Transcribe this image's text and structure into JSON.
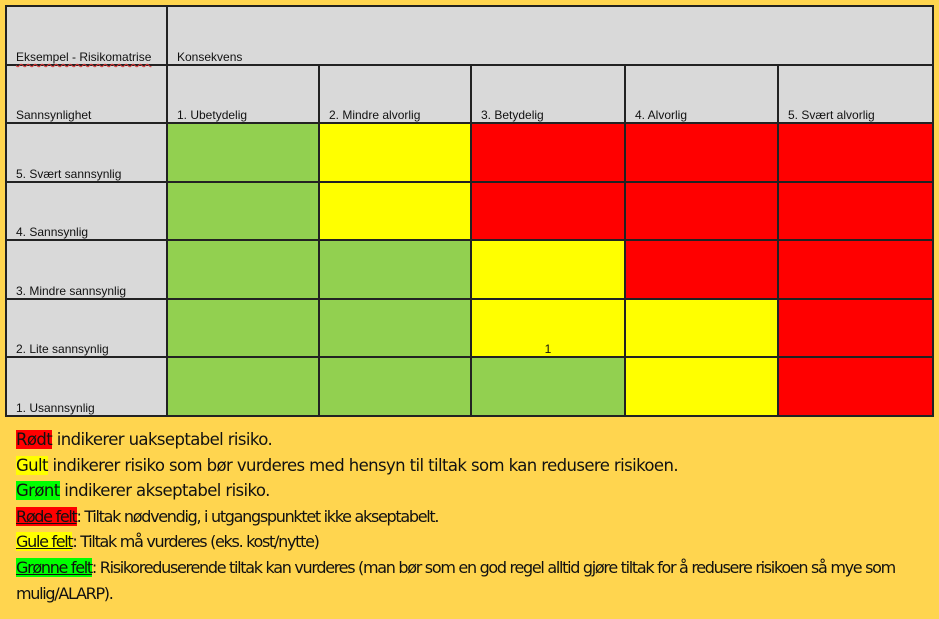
{
  "matrix": {
    "title": "Eksempel - Risikomatrise",
    "consequence_header": "Konsekvens",
    "probability_header": "Sannsynlighet",
    "consequence_columns": [
      "1. Ubetydelig",
      "2. Mindre alvorlig",
      "3. Betydelig",
      "4. Alvorlig",
      "5. Svært alvorlig"
    ],
    "rows": [
      {
        "label": "5. Svært sannsynlig",
        "cells": [
          {
            "color": "green",
            "value": ""
          },
          {
            "color": "yellow",
            "value": ""
          },
          {
            "color": "red",
            "value": ""
          },
          {
            "color": "red",
            "value": ""
          },
          {
            "color": "red",
            "value": ""
          }
        ]
      },
      {
        "label": "4. Sannsynlig",
        "cells": [
          {
            "color": "green",
            "value": ""
          },
          {
            "color": "yellow",
            "value": ""
          },
          {
            "color": "red",
            "value": ""
          },
          {
            "color": "red",
            "value": ""
          },
          {
            "color": "red",
            "value": ""
          }
        ]
      },
      {
        "label": "3. Mindre sannsynlig",
        "cells": [
          {
            "color": "green",
            "value": ""
          },
          {
            "color": "green",
            "value": ""
          },
          {
            "color": "yellow",
            "value": ""
          },
          {
            "color": "red",
            "value": ""
          },
          {
            "color": "red",
            "value": ""
          }
        ]
      },
      {
        "label": "2. Lite sannsynlig",
        "cells": [
          {
            "color": "green",
            "value": ""
          },
          {
            "color": "green",
            "value": ""
          },
          {
            "color": "yellow",
            "value": "1"
          },
          {
            "color": "yellow",
            "value": ""
          },
          {
            "color": "red",
            "value": ""
          }
        ]
      },
      {
        "label": "1. Usannsynlig",
        "cells": [
          {
            "color": "green",
            "value": ""
          },
          {
            "color": "green",
            "value": ""
          },
          {
            "color": "green",
            "value": ""
          },
          {
            "color": "yellow",
            "value": ""
          },
          {
            "color": "red",
            "value": ""
          }
        ]
      }
    ],
    "colors": {
      "green": "#92D050",
      "yellow": "#FFFF00",
      "red": "#FF0000",
      "header": "#D9D9D9",
      "background": "#FFD54F"
    }
  },
  "legend": [
    {
      "tag": "Rødt",
      "tag_color": "red",
      "text": " indikerer uakseptabel risiko."
    },
    {
      "tag": "Gult",
      "tag_color": "yellow",
      "text": " indikerer risiko som bør vurderes med hensyn til tiltak som kan redusere risikoen."
    },
    {
      "tag": "Grønt",
      "tag_color": "green",
      "text": " indikerer akseptabel risiko."
    },
    {
      "tag": "Røde felt",
      "tag_color": "red",
      "text": ": Tiltak nødvendig, i utgangspunktet ikke akseptabelt."
    },
    {
      "tag": "Gule felt",
      "tag_color": "yellow",
      "text": ": Tiltak må vurderes (eks. kost/nytte)"
    },
    {
      "tag": "Grønne felt",
      "tag_color": "green",
      "text": ": Risikoreduserende tiltak kan vurderes (man bør som en god regel alltid gjøre tiltak for å redusere risikoen så mye som mulig/ALARP)."
    }
  ]
}
